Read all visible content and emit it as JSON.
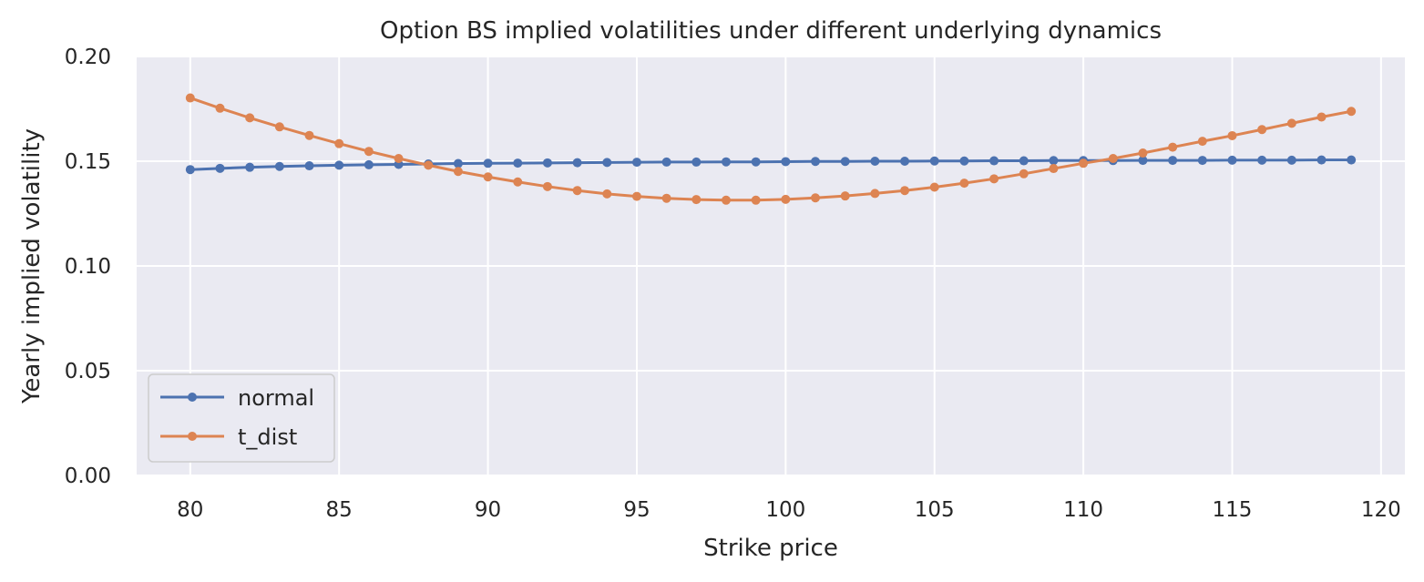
{
  "chart_data": {
    "type": "line",
    "title": "Option BS implied volatilities under different underlying dynamics",
    "xlabel": "Strike price",
    "ylabel": "Yearly implied volatility",
    "xlim": [
      78.2,
      120.8
    ],
    "ylim": [
      0.0,
      0.2
    ],
    "xticks": [
      80,
      85,
      90,
      95,
      100,
      105,
      110,
      115,
      120
    ],
    "yticks": [
      0.0,
      0.05,
      0.1,
      0.15,
      0.2
    ],
    "ytick_labels": [
      "0.00",
      "0.05",
      "0.10",
      "0.15",
      "0.20"
    ],
    "grid": true,
    "legend_position": "lower-left",
    "x": [
      80,
      81,
      82,
      83,
      84,
      85,
      86,
      87,
      88,
      89,
      90,
      91,
      92,
      93,
      94,
      95,
      96,
      97,
      98,
      99,
      100,
      101,
      102,
      103,
      104,
      105,
      106,
      107,
      108,
      109,
      110,
      111,
      112,
      113,
      114,
      115,
      116,
      117,
      118,
      119
    ],
    "series": [
      {
        "name": "normal",
        "color": "#4c72b0",
        "values": [
          0.146,
          0.1466,
          0.1471,
          0.1475,
          0.1478,
          0.1481,
          0.1483,
          0.1485,
          0.1487,
          0.1489,
          0.149,
          0.1491,
          0.1492,
          0.1493,
          0.1494,
          0.1495,
          0.1496,
          0.1496,
          0.1497,
          0.1497,
          0.1498,
          0.1499,
          0.1499,
          0.15,
          0.15,
          0.1501,
          0.1501,
          0.1502,
          0.1502,
          0.1503,
          0.1503,
          0.1503,
          0.1504,
          0.1504,
          0.1504,
          0.1505,
          0.1505,
          0.1505,
          0.1506,
          0.1506
        ]
      },
      {
        "name": "t_dist",
        "color": "#dd8452",
        "values": [
          0.1802,
          0.1753,
          0.1707,
          0.1664,
          0.1623,
          0.1584,
          0.1547,
          0.1513,
          0.1481,
          0.1451,
          0.1425,
          0.1401,
          0.1379,
          0.136,
          0.1344,
          0.1332,
          0.1323,
          0.1317,
          0.1314,
          0.1314,
          0.1318,
          0.1325,
          0.1334,
          0.1346,
          0.136,
          0.1376,
          0.1395,
          0.1416,
          0.144,
          0.1465,
          0.149,
          0.1513,
          0.1539,
          0.1567,
          0.1595,
          0.1622,
          0.1651,
          0.1681,
          0.1711,
          0.1738
        ]
      }
    ]
  }
}
